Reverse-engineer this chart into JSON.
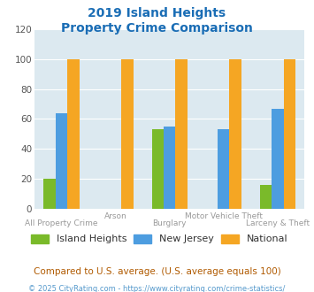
{
  "title_line1": "2019 Island Heights",
  "title_line2": "Property Crime Comparison",
  "categories": [
    "All Property Crime",
    "Arson",
    "Burglary",
    "Motor Vehicle Theft",
    "Larceny & Theft"
  ],
  "series": {
    "Island Heights": [
      20,
      0,
      53,
      0,
      16
    ],
    "New Jersey": [
      64,
      0,
      55,
      53,
      67
    ],
    "National": [
      100,
      100,
      100,
      100,
      100
    ]
  },
  "colors": {
    "Island Heights": "#7aba2a",
    "New Jersey": "#4d9de0",
    "National": "#f5a623"
  },
  "ylim": [
    0,
    120
  ],
  "yticks": [
    0,
    20,
    40,
    60,
    80,
    100,
    120
  ],
  "plot_bg": "#dce9f0",
  "footer_text": "Compared to U.S. average. (U.S. average equals 100)",
  "copyright_text": "© 2025 CityRating.com - https://www.cityrating.com/crime-statistics/",
  "title_color": "#1a6db5",
  "footer_color": "#b05a00",
  "copyright_color": "#5599cc",
  "xlabel_color": "#999999",
  "legend_label_color": "#333333",
  "bar_width": 0.22
}
